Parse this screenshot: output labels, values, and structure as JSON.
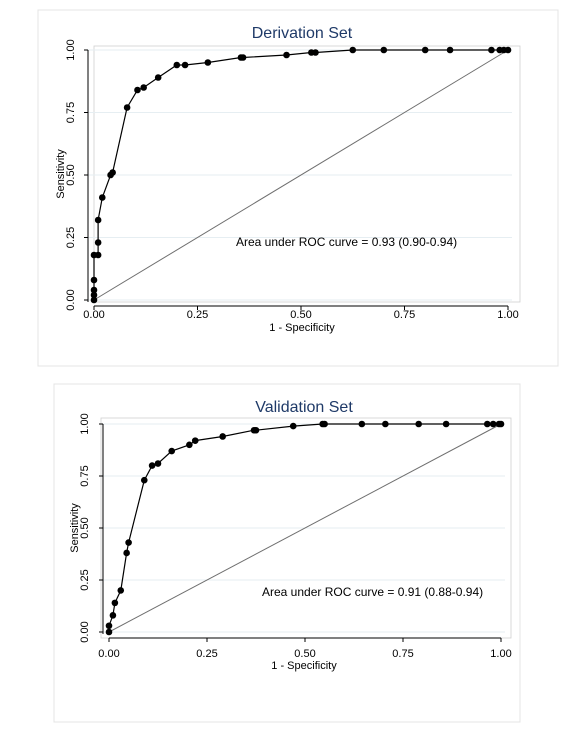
{
  "chart_data": [
    {
      "type": "line",
      "title": "Derivation Set",
      "xlabel": "1 - Specificity",
      "ylabel": "Sensitivity",
      "xlim": [
        0,
        1
      ],
      "ylim": [
        0,
        1
      ],
      "xticks": [
        "0.00",
        "0.25",
        "0.50",
        "0.75",
        "1.00"
      ],
      "yticks": [
        "0.00",
        "0.25",
        "0.50",
        "0.75",
        "1.00"
      ],
      "grid": true,
      "annotation": "Area under ROC curve = 0.93 (0.90-0.94)",
      "reference_line": {
        "x": [
          0,
          1
        ],
        "y": [
          0,
          1
        ]
      },
      "series": [
        {
          "x": [
            0.0,
            0.0,
            0.0,
            0.0,
            0.0,
            0.01,
            0.01,
            0.01,
            0.02,
            0.04,
            0.045,
            0.08,
            0.105,
            0.12,
            0.155,
            0.2,
            0.22,
            0.275,
            0.355,
            0.36,
            0.465,
            0.525,
            0.535,
            0.625,
            0.7,
            0.8,
            0.86,
            0.96,
            0.98,
            0.99,
            1.0
          ],
          "y": [
            0.0,
            0.02,
            0.04,
            0.08,
            0.18,
            0.18,
            0.23,
            0.32,
            0.41,
            0.5,
            0.51,
            0.77,
            0.84,
            0.85,
            0.89,
            0.94,
            0.94,
            0.95,
            0.97,
            0.97,
            0.98,
            0.99,
            0.99,
            1.0,
            1.0,
            1.0,
            1.0,
            1.0,
            1.0,
            1.0,
            1.0
          ]
        }
      ]
    },
    {
      "type": "line",
      "title": "Validation Set",
      "xlabel": "1 - Specificity",
      "ylabel": "Sensitivity",
      "xlim": [
        0,
        1
      ],
      "ylim": [
        0,
        1
      ],
      "xticks": [
        "0.00",
        "0.25",
        "0.50",
        "0.75",
        "1.00"
      ],
      "yticks": [
        "0.00",
        "0.25",
        "0.50",
        "0.75",
        "1.00"
      ],
      "grid": true,
      "annotation": "Area under ROC curve = 0.91 (0.88-0.94)",
      "reference_line": {
        "x": [
          0,
          1
        ],
        "y": [
          0,
          1
        ]
      },
      "series": [
        {
          "x": [
            0.0,
            0.0,
            0.01,
            0.015,
            0.03,
            0.045,
            0.05,
            0.09,
            0.11,
            0.125,
            0.16,
            0.205,
            0.22,
            0.29,
            0.37,
            0.375,
            0.47,
            0.545,
            0.55,
            0.645,
            0.705,
            0.79,
            0.86,
            0.965,
            0.98,
            0.995,
            1.0
          ],
          "y": [
            0.0,
            0.03,
            0.08,
            0.14,
            0.2,
            0.38,
            0.43,
            0.73,
            0.8,
            0.81,
            0.87,
            0.9,
            0.92,
            0.94,
            0.97,
            0.97,
            0.99,
            1.0,
            1.0,
            1.0,
            1.0,
            1.0,
            1.0,
            1.0,
            1.0,
            1.0,
            1.0
          ]
        }
      ]
    }
  ]
}
